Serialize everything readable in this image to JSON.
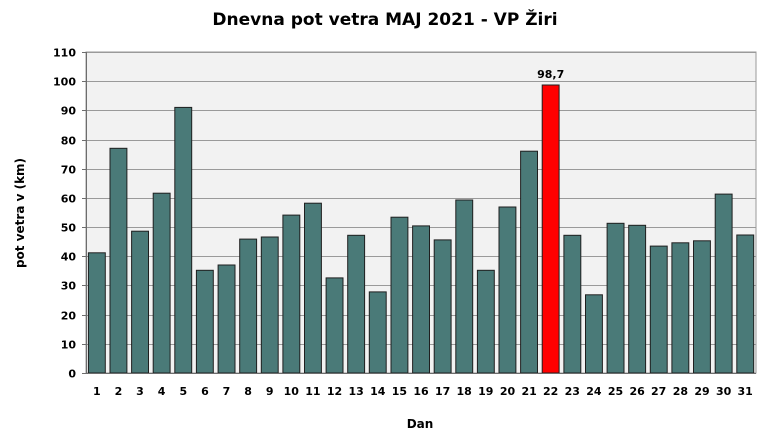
{
  "chart_data": {
    "type": "bar",
    "title": "Dnevna pot vetra MAJ 2021 - VP Žiri",
    "xlabel": "Dan",
    "ylabel": "pot vetra  v (km)",
    "ylim": [
      0,
      110
    ],
    "ytick_step": 10,
    "grid": true,
    "categories": [
      "1",
      "2",
      "3",
      "4",
      "5",
      "6",
      "7",
      "8",
      "9",
      "10",
      "11",
      "12",
      "13",
      "14",
      "15",
      "16",
      "17",
      "18",
      "19",
      "20",
      "21",
      "22",
      "23",
      "24",
      "25",
      "26",
      "27",
      "28",
      "29",
      "30",
      "31"
    ],
    "values": [
      41.2,
      77.0,
      48.6,
      61.6,
      91.0,
      35.2,
      37.0,
      45.9,
      46.6,
      54.1,
      58.2,
      32.6,
      47.2,
      27.8,
      53.4,
      50.4,
      45.6,
      59.3,
      35.2,
      56.9,
      76.0,
      98.7,
      47.2,
      26.8,
      51.3,
      50.6,
      43.5,
      44.6,
      45.3,
      61.3,
      47.3
    ],
    "highlight": {
      "index": 21,
      "label": "98,7",
      "color": "#ff0000"
    },
    "bar_color": "#4a7a78",
    "plot_background": "#f2f2f2"
  }
}
